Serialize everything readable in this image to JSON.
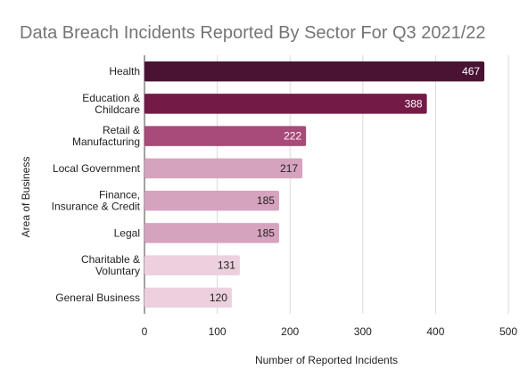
{
  "chart_data": {
    "type": "bar",
    "orientation": "horizontal",
    "title": "Data Breach Incidents Reported By Sector For Q3 2021/22",
    "xlabel": "Number of Reported Incidents",
    "ylabel": "Area of Business",
    "xlim": [
      0,
      500
    ],
    "xticks": [
      "0",
      "100",
      "200",
      "300",
      "400",
      "500"
    ],
    "grid": true,
    "legend": "none",
    "categories": [
      [
        "Health"
      ],
      [
        "Education &",
        "Childcare"
      ],
      [
        "Retail &",
        "Manufacturing"
      ],
      [
        "Local Government"
      ],
      [
        "Finance,",
        "Insurance & Credit"
      ],
      [
        "Legal"
      ],
      [
        "Charitable &",
        "Voluntary"
      ],
      [
        "General Business"
      ]
    ],
    "values": [
      467,
      388,
      222,
      217,
      185,
      185,
      131,
      120
    ],
    "bar_colors": [
      "#4a1334",
      "#741a47",
      "#a84a7a",
      "#d6a3bf",
      "#d6a3bf",
      "#d6a3bf",
      "#ecd0dd",
      "#ecd0dd"
    ],
    "label_colors": [
      "#ffffff",
      "#ffffff",
      "#ffffff",
      "#222222",
      "#222222",
      "#222222",
      "#222222",
      "#222222"
    ],
    "gridline_color": "#d9d9d9"
  }
}
